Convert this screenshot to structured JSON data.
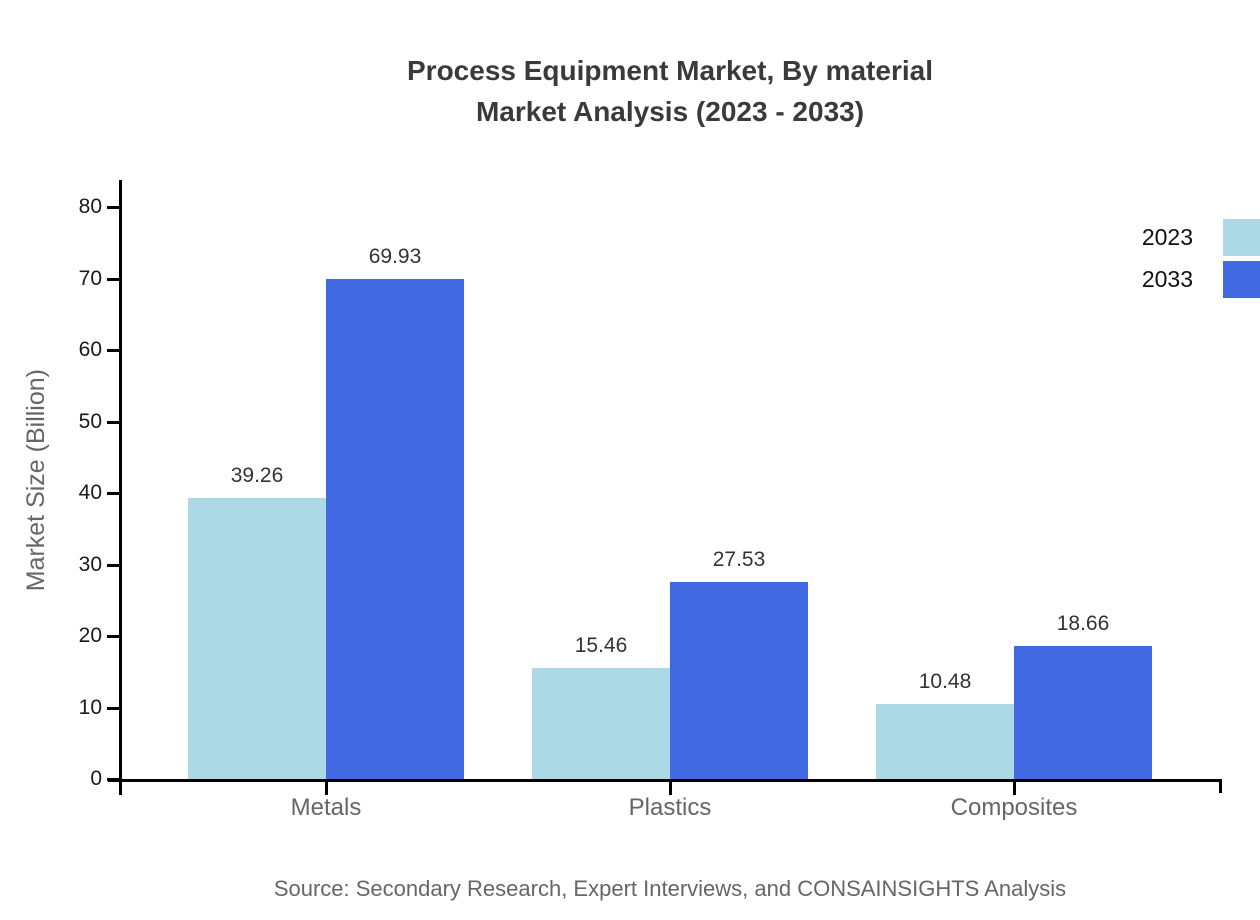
{
  "title": {
    "line1": "Process Equipment Market, By material",
    "line2": "Market Analysis (2023 - 2033)"
  },
  "source_note": "Source: Secondary Research, Expert Interviews, and CONSAINSIGHTS Analysis",
  "legend": {
    "items": [
      {
        "label": "2023",
        "color": "#ADD8E6"
      },
      {
        "label": "2033",
        "color": "#4169E1"
      }
    ]
  },
  "colors": {
    "series_2023": "#ADD8E6",
    "series_2033": "#4169E1",
    "axis": "#000000",
    "title_text": "#3A3A3A",
    "secondary_text": "#666666",
    "tick_text": "#1A1A1A",
    "value_text": "#333333",
    "background": "#FFFFFF"
  },
  "chart_data": {
    "type": "bar",
    "title": "Process Equipment Market, By material Market Analysis (2023 - 2033)",
    "categories": [
      "Metals",
      "Plastics",
      "Composites"
    ],
    "series": [
      {
        "name": "2023",
        "color": "#ADD8E6",
        "values": [
          39.26,
          15.46,
          10.48
        ]
      },
      {
        "name": "2033",
        "color": "#4169E1",
        "values": [
          69.93,
          27.53,
          18.66
        ]
      }
    ],
    "xlabel": "",
    "ylabel": "Market Size (Billion)",
    "ylim": [
      0,
      84
    ],
    "yticks": [
      0,
      10,
      20,
      30,
      40,
      50,
      60,
      70,
      80
    ],
    "grid": false,
    "legend_position": "top-right",
    "value_labels": true
  }
}
